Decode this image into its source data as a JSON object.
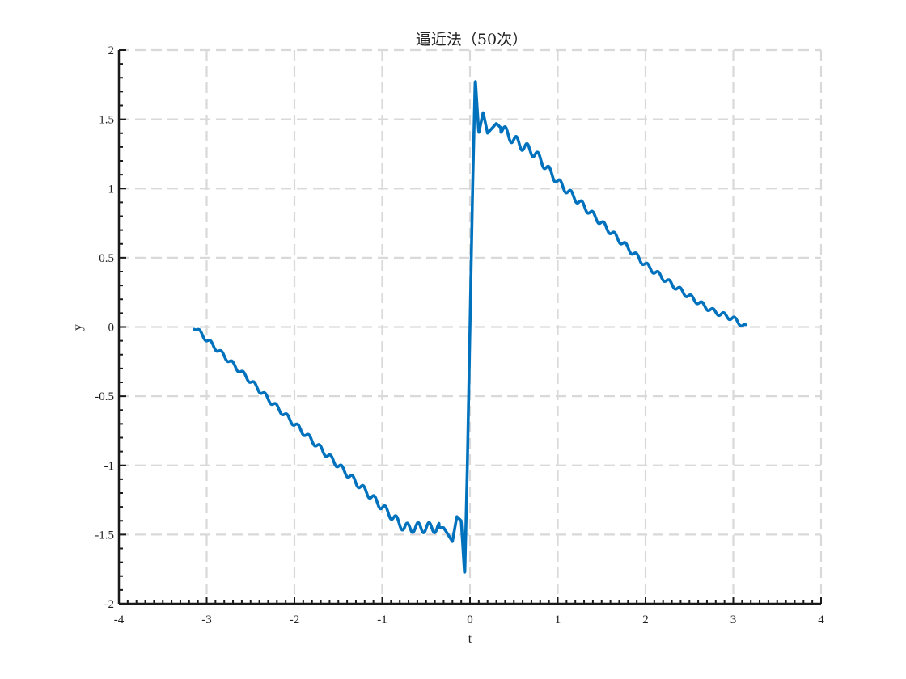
{
  "chart_data": {
    "type": "line",
    "title": "逼近法（50次）",
    "xlabel": "t",
    "ylabel": "y",
    "xlim": [
      -4,
      4
    ],
    "ylim": [
      -2,
      2
    ],
    "x_ticks": [
      -4,
      -3,
      -2,
      -1,
      0,
      1,
      2,
      3,
      4
    ],
    "y_ticks": [
      -2,
      -1.5,
      -1,
      -0.5,
      0,
      0.5,
      1,
      1.5,
      2
    ],
    "x_tick_labels": [
      "-4",
      "-3",
      "-2",
      "-1",
      "0",
      "1",
      "2",
      "3",
      "4"
    ],
    "y_tick_labels": [
      "-2",
      "-1.5",
      "-1",
      "-0.5",
      "0",
      "0.5",
      "1",
      "1.5",
      "2"
    ],
    "grid": true,
    "grid_style": "dashed",
    "minor_ticks": true,
    "series": [
      {
        "color": "#0072bd",
        "x": [
          -3.14,
          -3.0,
          -2.75,
          -2.5,
          -2.25,
          -2.0,
          -1.75,
          -1.5,
          -1.25,
          -1.0,
          -0.75,
          -0.5,
          -0.3,
          -0.2,
          -0.15,
          -0.1,
          -0.06,
          -0.03,
          0.0,
          0.03,
          0.06,
          0.1,
          0.15,
          0.2,
          0.3,
          0.5,
          0.75,
          1.0,
          1.25,
          1.5,
          1.75,
          2.0,
          2.25,
          2.5,
          2.75,
          3.0,
          3.14
        ],
        "y": [
          0.0,
          -0.09,
          -0.24,
          -0.39,
          -0.55,
          -0.7,
          -0.85,
          -1.0,
          -1.15,
          -1.3,
          -1.45,
          -1.45,
          -1.45,
          -1.55,
          -1.37,
          -1.4,
          -1.8,
          -1.0,
          0.0,
          1.0,
          1.8,
          1.4,
          1.55,
          1.4,
          1.47,
          1.35,
          1.25,
          1.05,
          0.9,
          0.75,
          0.6,
          0.45,
          0.33,
          0.22,
          0.12,
          0.06,
          0.0
        ]
      }
    ]
  }
}
